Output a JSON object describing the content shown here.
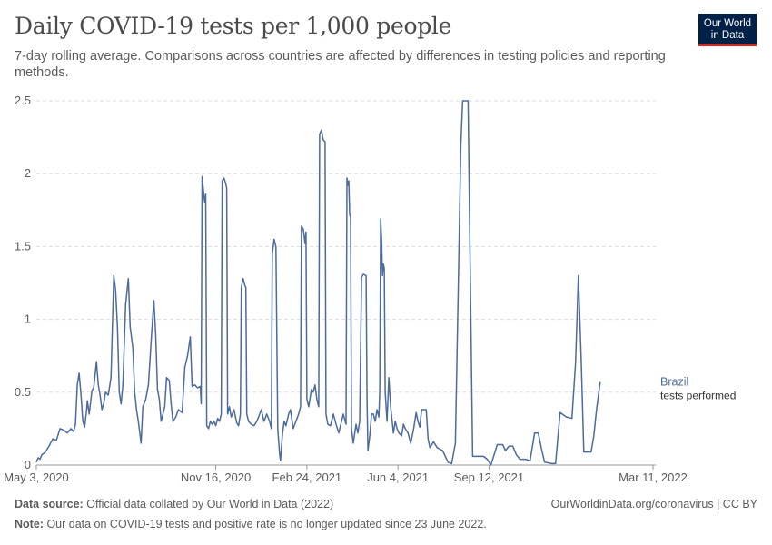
{
  "header": {
    "title": "Daily COVID-19 tests per 1,000 people",
    "subtitle": "7-day rolling average. Comparisons across countries are affected by differences in testing policies and reporting methods.",
    "logo_line1": "Our World",
    "logo_line2": "in Data"
  },
  "footer": {
    "source_label": "Data source:",
    "source_text": "Official data collated by Our World in Data (2022)",
    "url": "OurWorldinData.org/coronavirus | CC BY",
    "note_label": "Note:",
    "note_text": "Our data on COVID-19 tests and positive rate is no longer updated since 23 June 2022."
  },
  "colors": {
    "series": "#4c6a9c",
    "grid": "#dddddd",
    "axis": "#999999",
    "text": "#5b5b5b"
  },
  "chart_data": {
    "type": "line",
    "title": "Daily COVID-19 tests per 1,000 people",
    "xlabel": "",
    "ylabel": "",
    "ylim": [
      0,
      2.5
    ],
    "xlim_days": [
      0,
      680
    ],
    "yticks": [
      {
        "value": 0,
        "label": "0"
      },
      {
        "value": 0.5,
        "label": "0.5"
      },
      {
        "value": 1,
        "label": "1"
      },
      {
        "value": 1.5,
        "label": "1.5"
      },
      {
        "value": 2,
        "label": "2"
      },
      {
        "value": 2.5,
        "label": "2.5"
      }
    ],
    "xticks": [
      {
        "day": 0,
        "label": "May 3, 2020"
      },
      {
        "day": 197,
        "label": "Nov 16, 2020"
      },
      {
        "day": 297,
        "label": "Feb 24, 2021"
      },
      {
        "day": 397,
        "label": "Jun 4, 2021"
      },
      {
        "day": 497,
        "label": "Sep 12, 2021"
      },
      {
        "day": 677,
        "label": "Mar 11, 2022"
      }
    ],
    "grid": "horizontal dashed",
    "series": [
      {
        "name": "Brazil",
        "label_sub": "tests performed",
        "points": [
          [
            0,
            0.02
          ],
          [
            2,
            0.05
          ],
          [
            4,
            0.04
          ],
          [
            6,
            0.07
          ],
          [
            10,
            0.09
          ],
          [
            14,
            0.13
          ],
          [
            18,
            0.18
          ],
          [
            22,
            0.17
          ],
          [
            26,
            0.25
          ],
          [
            30,
            0.24
          ],
          [
            34,
            0.22
          ],
          [
            38,
            0.25
          ],
          [
            41,
            0.23
          ],
          [
            43,
            0.28
          ],
          [
            45,
            0.55
          ],
          [
            47,
            0.63
          ],
          [
            49,
            0.49
          ],
          [
            51,
            0.3
          ],
          [
            53,
            0.26
          ],
          [
            55,
            0.37
          ],
          [
            56,
            0.44
          ],
          [
            58,
            0.35
          ],
          [
            61,
            0.51
          ],
          [
            63,
            0.53
          ],
          [
            66,
            0.71
          ],
          [
            68,
            0.55
          ],
          [
            70,
            0.48
          ],
          [
            72,
            0.38
          ],
          [
            74,
            0.42
          ],
          [
            76,
            0.5
          ],
          [
            79,
            0.48
          ],
          [
            82,
            0.6
          ],
          [
            85,
            1.3
          ],
          [
            87,
            1.2
          ],
          [
            89,
            0.95
          ],
          [
            91,
            0.5
          ],
          [
            93,
            0.42
          ],
          [
            95,
            0.55
          ],
          [
            98,
            1.1
          ],
          [
            101,
            1.28
          ],
          [
            103,
            0.95
          ],
          [
            106,
            0.8
          ],
          [
            108,
            0.5
          ],
          [
            110,
            0.38
          ],
          [
            112,
            0.3
          ],
          [
            115,
            0.15
          ],
          [
            117,
            0.4
          ],
          [
            120,
            0.45
          ],
          [
            123,
            0.55
          ],
          [
            126,
            0.85
          ],
          [
            129,
            1.13
          ],
          [
            131,
            0.9
          ],
          [
            133,
            0.52
          ],
          [
            135,
            0.45
          ],
          [
            137,
            0.3
          ],
          [
            139,
            0.35
          ],
          [
            141,
            0.4
          ],
          [
            143,
            0.6
          ],
          [
            146,
            0.58
          ],
          [
            148,
            0.42
          ],
          [
            150,
            0.3
          ],
          [
            153,
            0.33
          ],
          [
            156,
            0.38
          ],
          [
            160,
            0.36
          ],
          [
            163,
            0.67
          ],
          [
            166,
            0.75
          ],
          [
            169,
            0.88
          ],
          [
            171,
            0.54
          ],
          [
            174,
            0.55
          ],
          [
            177,
            0.53
          ],
          [
            180,
            0.54
          ],
          [
            181,
            0.42
          ],
          [
            182,
            1.98
          ],
          [
            184,
            1.85
          ],
          [
            185,
            1.8
          ],
          [
            186,
            1.86
          ],
          [
            187,
            0.27
          ],
          [
            189,
            0.25
          ],
          [
            191,
            0.3
          ],
          [
            193,
            0.28
          ],
          [
            195,
            0.3
          ],
          [
            197,
            0.27
          ],
          [
            199,
            0.32
          ],
          [
            201,
            0.3
          ],
          [
            203,
            0.35
          ],
          [
            204,
            1.95
          ],
          [
            206,
            1.97
          ],
          [
            208,
            1.93
          ],
          [
            209,
            1.9
          ],
          [
            210,
            0.35
          ],
          [
            212,
            0.4
          ],
          [
            214,
            0.33
          ],
          [
            217,
            0.38
          ],
          [
            220,
            0.29
          ],
          [
            222,
            0.27
          ],
          [
            224,
            0.35
          ],
          [
            225,
            1.22
          ],
          [
            227,
            1.28
          ],
          [
            229,
            1.23
          ],
          [
            230,
            1.22
          ],
          [
            231,
            0.35
          ],
          [
            233,
            0.3
          ],
          [
            236,
            0.28
          ],
          [
            239,
            0.27
          ],
          [
            242,
            0.3
          ],
          [
            244,
            0.33
          ],
          [
            247,
            0.38
          ],
          [
            250,
            0.3
          ],
          [
            253,
            0.35
          ],
          [
            256,
            0.3
          ],
          [
            258,
            0.25
          ],
          [
            259,
            1.45
          ],
          [
            261,
            1.55
          ],
          [
            263,
            1.5
          ],
          [
            265,
            0.25
          ],
          [
            267,
            0.08
          ],
          [
            268,
            0.03
          ],
          [
            270,
            0.2
          ],
          [
            272,
            0.3
          ],
          [
            274,
            0.27
          ],
          [
            277,
            0.35
          ],
          [
            279,
            0.38
          ],
          [
            282,
            0.25
          ],
          [
            285,
            0.3
          ],
          [
            288,
            0.35
          ],
          [
            290,
            0.4
          ],
          [
            291,
            1.64
          ],
          [
            293,
            1.62
          ],
          [
            295,
            1.52
          ],
          [
            296,
            1.6
          ],
          [
            297,
            0.45
          ],
          [
            299,
            0.4
          ],
          [
            302,
            0.52
          ],
          [
            304,
            0.5
          ],
          [
            306,
            0.55
          ],
          [
            308,
            0.45
          ],
          [
            310,
            0.4
          ],
          [
            311,
            2.27
          ],
          [
            313,
            2.3
          ],
          [
            315,
            2.23
          ],
          [
            317,
            2.22
          ],
          [
            318,
            0.35
          ],
          [
            320,
            0.28
          ],
          [
            323,
            0.27
          ],
          [
            326,
            0.35
          ],
          [
            329,
            0.28
          ],
          [
            332,
            0.22
          ],
          [
            335,
            0.3
          ],
          [
            337,
            0.35
          ],
          [
            340,
            0.28
          ],
          [
            341,
            1.97
          ],
          [
            342,
            1.92
          ],
          [
            343,
            1.95
          ],
          [
            344,
            1.72
          ],
          [
            345,
            1.7
          ],
          [
            346,
            0.25
          ],
          [
            348,
            0.15
          ],
          [
            351,
            0.28
          ],
          [
            353,
            0.22
          ],
          [
            355,
            0.3
          ],
          [
            357,
            1.29
          ],
          [
            359,
            1.31
          ],
          [
            362,
            1.3
          ],
          [
            363,
            0.45
          ],
          [
            364,
            0.1
          ],
          [
            366,
            0.2
          ],
          [
            368,
            0.35
          ],
          [
            370,
            0.35
          ],
          [
            372,
            0.3
          ],
          [
            374,
            0.38
          ],
          [
            376,
            0.33
          ],
          [
            377,
            0.5
          ],
          [
            378,
            1.69
          ],
          [
            379,
            1.55
          ],
          [
            380,
            1.3
          ],
          [
            381,
            1.38
          ],
          [
            382,
            1.35
          ],
          [
            383,
            0.5
          ],
          [
            385,
            0.3
          ],
          [
            387,
            0.6
          ],
          [
            389,
            0.4
          ],
          [
            392,
            0.22
          ],
          [
            394,
            0.3
          ],
          [
            396,
            0.25
          ],
          [
            398,
            0.22
          ],
          [
            401,
            0.2
          ],
          [
            403,
            0.28
          ],
          [
            405,
            0.25
          ],
          [
            408,
            0.22
          ],
          [
            411,
            0.15
          ],
          [
            414,
            0.24
          ],
          [
            417,
            0.36
          ],
          [
            419,
            0.3
          ],
          [
            421,
            0.26
          ],
          [
            423,
            0.38
          ],
          [
            428,
            0.38
          ],
          [
            430,
            0.18
          ],
          [
            432,
            0.12
          ],
          [
            436,
            0.16
          ],
          [
            440,
            0.12
          ],
          [
            446,
            0.1
          ],
          [
            452,
            0.02
          ],
          [
            456,
            0.01
          ],
          [
            460,
            0.15
          ],
          [
            464,
            1.5
          ],
          [
            466,
            2.2
          ],
          [
            468,
            2.5
          ],
          [
            474,
            2.5
          ],
          [
            476,
            1.5
          ],
          [
            479,
            0.06
          ],
          [
            485,
            0.06
          ],
          [
            491,
            0.06
          ],
          [
            495,
            0.04
          ],
          [
            499,
            0.0
          ],
          [
            506,
            0.14
          ],
          [
            512,
            0.14
          ],
          [
            515,
            0.1
          ],
          [
            519,
            0.13
          ],
          [
            523,
            0.13
          ],
          [
            527,
            0.07
          ],
          [
            531,
            0.04
          ],
          [
            537,
            0.04
          ],
          [
            542,
            0.03
          ],
          [
            547,
            0.22
          ],
          [
            551,
            0.22
          ],
          [
            555,
            0.1
          ],
          [
            558,
            0.02
          ],
          [
            566,
            0.01
          ],
          [
            570,
            0.01
          ],
          [
            575,
            0.36
          ],
          [
            582,
            0.33
          ],
          [
            588,
            0.32
          ],
          [
            592,
            0.7
          ],
          [
            595,
            1.3
          ],
          [
            598,
            0.75
          ],
          [
            601,
            0.09
          ],
          [
            609,
            0.09
          ],
          [
            612,
            0.2
          ],
          [
            615,
            0.38
          ],
          [
            619,
            0.57
          ]
        ]
      }
    ]
  }
}
